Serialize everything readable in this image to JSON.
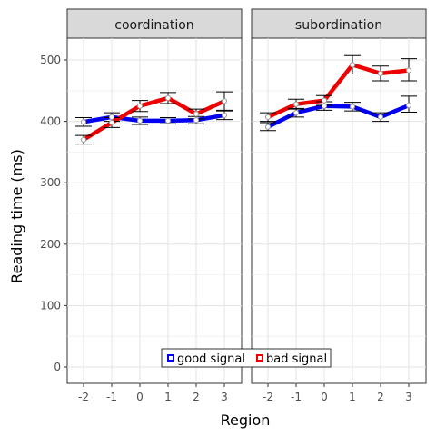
{
  "chart_data": {
    "type": "line",
    "xlabel": "Region",
    "ylabel": "Reading time (ms)",
    "x": [
      "-2",
      "-1",
      "0",
      "1",
      "2",
      "3"
    ],
    "ylim": [
      -30,
      530
    ],
    "yticks": [
      0,
      100,
      200,
      300,
      400,
      500
    ],
    "grid": true,
    "legend_position": "bottom-center",
    "panels": [
      {
        "title": "coordination",
        "series": [
          {
            "name": "good signal",
            "color": "#0000ee",
            "values": [
              399,
              407,
              401,
              401,
              402,
              410
            ],
            "err_low": [
              392,
              400,
              395,
              396,
              396,
              403
            ],
            "err_high": [
              406,
              414,
              407,
              406,
              408,
              417
            ]
          },
          {
            "name": "bad signal",
            "color": "#ee0000",
            "values": [
              370,
              398,
              425,
              438,
              412,
              433
            ],
            "err_low": [
              363,
              390,
              416,
              429,
              404,
              418
            ],
            "err_high": [
              377,
              406,
              434,
              447,
              420,
              448
            ]
          }
        ]
      },
      {
        "title": "subordination",
        "series": [
          {
            "name": "good signal",
            "color": "#0000ee",
            "values": [
              391,
              414,
              425,
              424,
              407,
              426
            ],
            "err_low": [
              385,
              407,
              418,
              417,
              400,
              415
            ],
            "err_high": [
              398,
              421,
              432,
              431,
              414,
              441
            ]
          },
          {
            "name": "bad signal",
            "color": "#ee0000",
            "values": [
              407,
              428,
              434,
              492,
              478,
              483
            ],
            "err_low": [
              400,
              420,
              426,
              477,
              466,
              466
            ],
            "err_high": [
              414,
              436,
              442,
              507,
              490,
              502
            ]
          }
        ]
      }
    ]
  }
}
